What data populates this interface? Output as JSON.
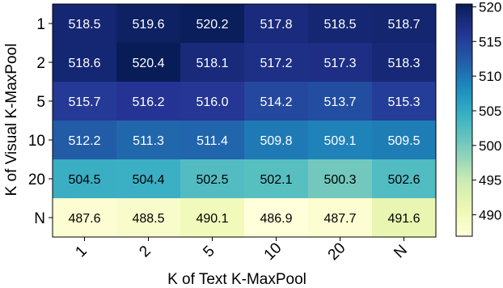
{
  "chart_data": {
    "type": "heatmap",
    "title": "",
    "xlabel": "K of Text K-MaxPool",
    "ylabel": "K of Visual K-MaxPool",
    "x_categories": [
      "1",
      "2",
      "5",
      "10",
      "20",
      "N"
    ],
    "y_categories": [
      "1",
      "2",
      "5",
      "10",
      "20",
      "N"
    ],
    "values": [
      [
        518.5,
        519.6,
        520.2,
        517.8,
        518.5,
        518.7
      ],
      [
        518.6,
        520.4,
        518.1,
        517.2,
        517.3,
        518.3
      ],
      [
        515.7,
        516.2,
        516.0,
        514.2,
        513.7,
        515.3
      ],
      [
        512.2,
        511.3,
        511.4,
        509.8,
        509.1,
        509.5
      ],
      [
        504.5,
        504.4,
        502.5,
        502.1,
        500.3,
        502.6
      ],
      [
        487.6,
        488.5,
        490.1,
        486.9,
        487.7,
        491.6
      ]
    ],
    "value_labels": [
      [
        "518.5",
        "519.6",
        "520.2",
        "517.8",
        "518.5",
        "518.7"
      ],
      [
        "518.6",
        "520.4",
        "518.1",
        "517.2",
        "517.3",
        "518.3"
      ],
      [
        "515.7",
        "516.2",
        "516.0",
        "514.2",
        "513.7",
        "515.3"
      ],
      [
        "512.2",
        "511.3",
        "511.4",
        "509.8",
        "509.1",
        "509.5"
      ],
      [
        "504.5",
        "504.4",
        "502.5",
        "502.1",
        "500.3",
        "502.6"
      ],
      [
        "487.6",
        "488.5",
        "490.1",
        "486.9",
        "487.7",
        "491.6"
      ]
    ],
    "colormap": "YlGnBu",
    "colorbar": {
      "range": [
        486.9,
        520.4
      ],
      "ticks": [
        490,
        495,
        500,
        505,
        510,
        515,
        520
      ],
      "tick_labels": [
        "490",
        "495",
        "500",
        "505",
        "510",
        "515",
        "520"
      ],
      "placement": "right"
    }
  }
}
